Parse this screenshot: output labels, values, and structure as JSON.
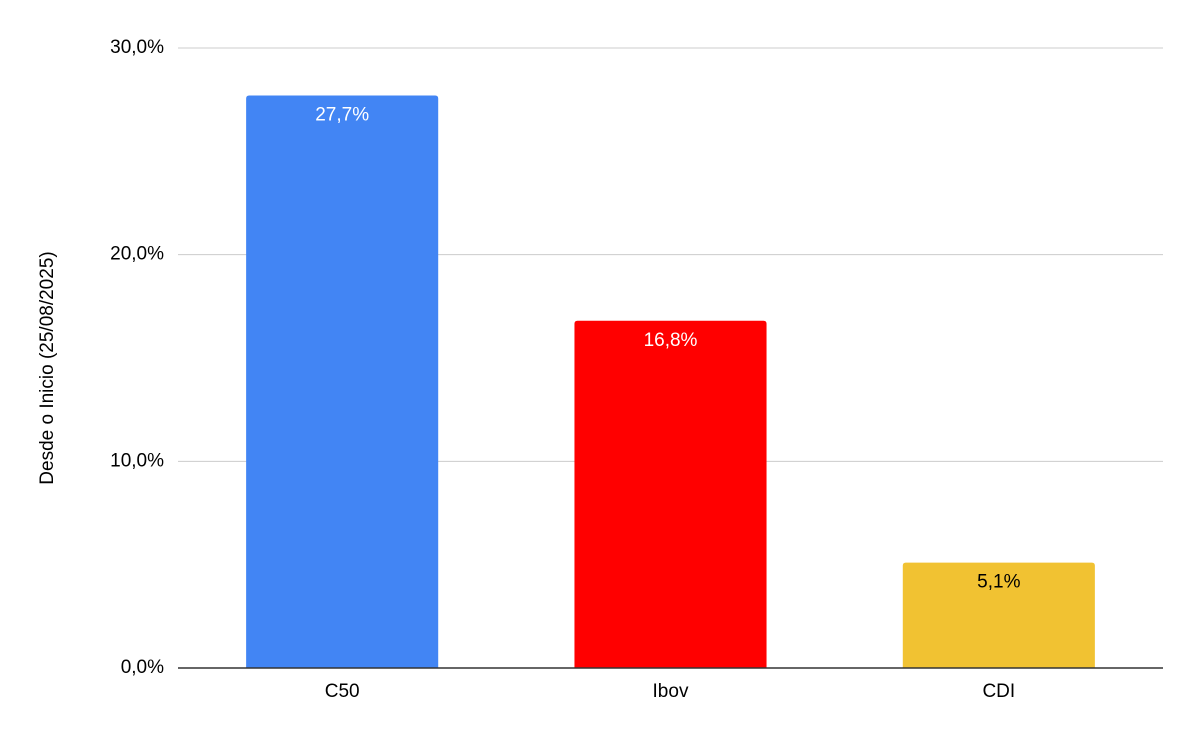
{
  "chart_data": {
    "type": "bar",
    "y_label": "Desde o Inicio (25/08/2025)",
    "categories": [
      "C50",
      "Ibov",
      "CDI"
    ],
    "values": [
      27.7,
      16.8,
      5.1
    ],
    "value_labels": [
      "27,7%",
      "16,8%",
      "5,1%"
    ],
    "colors": [
      "#4285f4",
      "#ff0000",
      "#f1c232"
    ],
    "ylim": [
      0,
      30
    ],
    "yticks": [
      {
        "value": 0,
        "label": "0,0%"
      },
      {
        "value": 10,
        "label": "10,0%"
      },
      {
        "value": 20,
        "label": "20,0%"
      },
      {
        "value": 30,
        "label": "30,0%"
      }
    ],
    "grid": true
  }
}
